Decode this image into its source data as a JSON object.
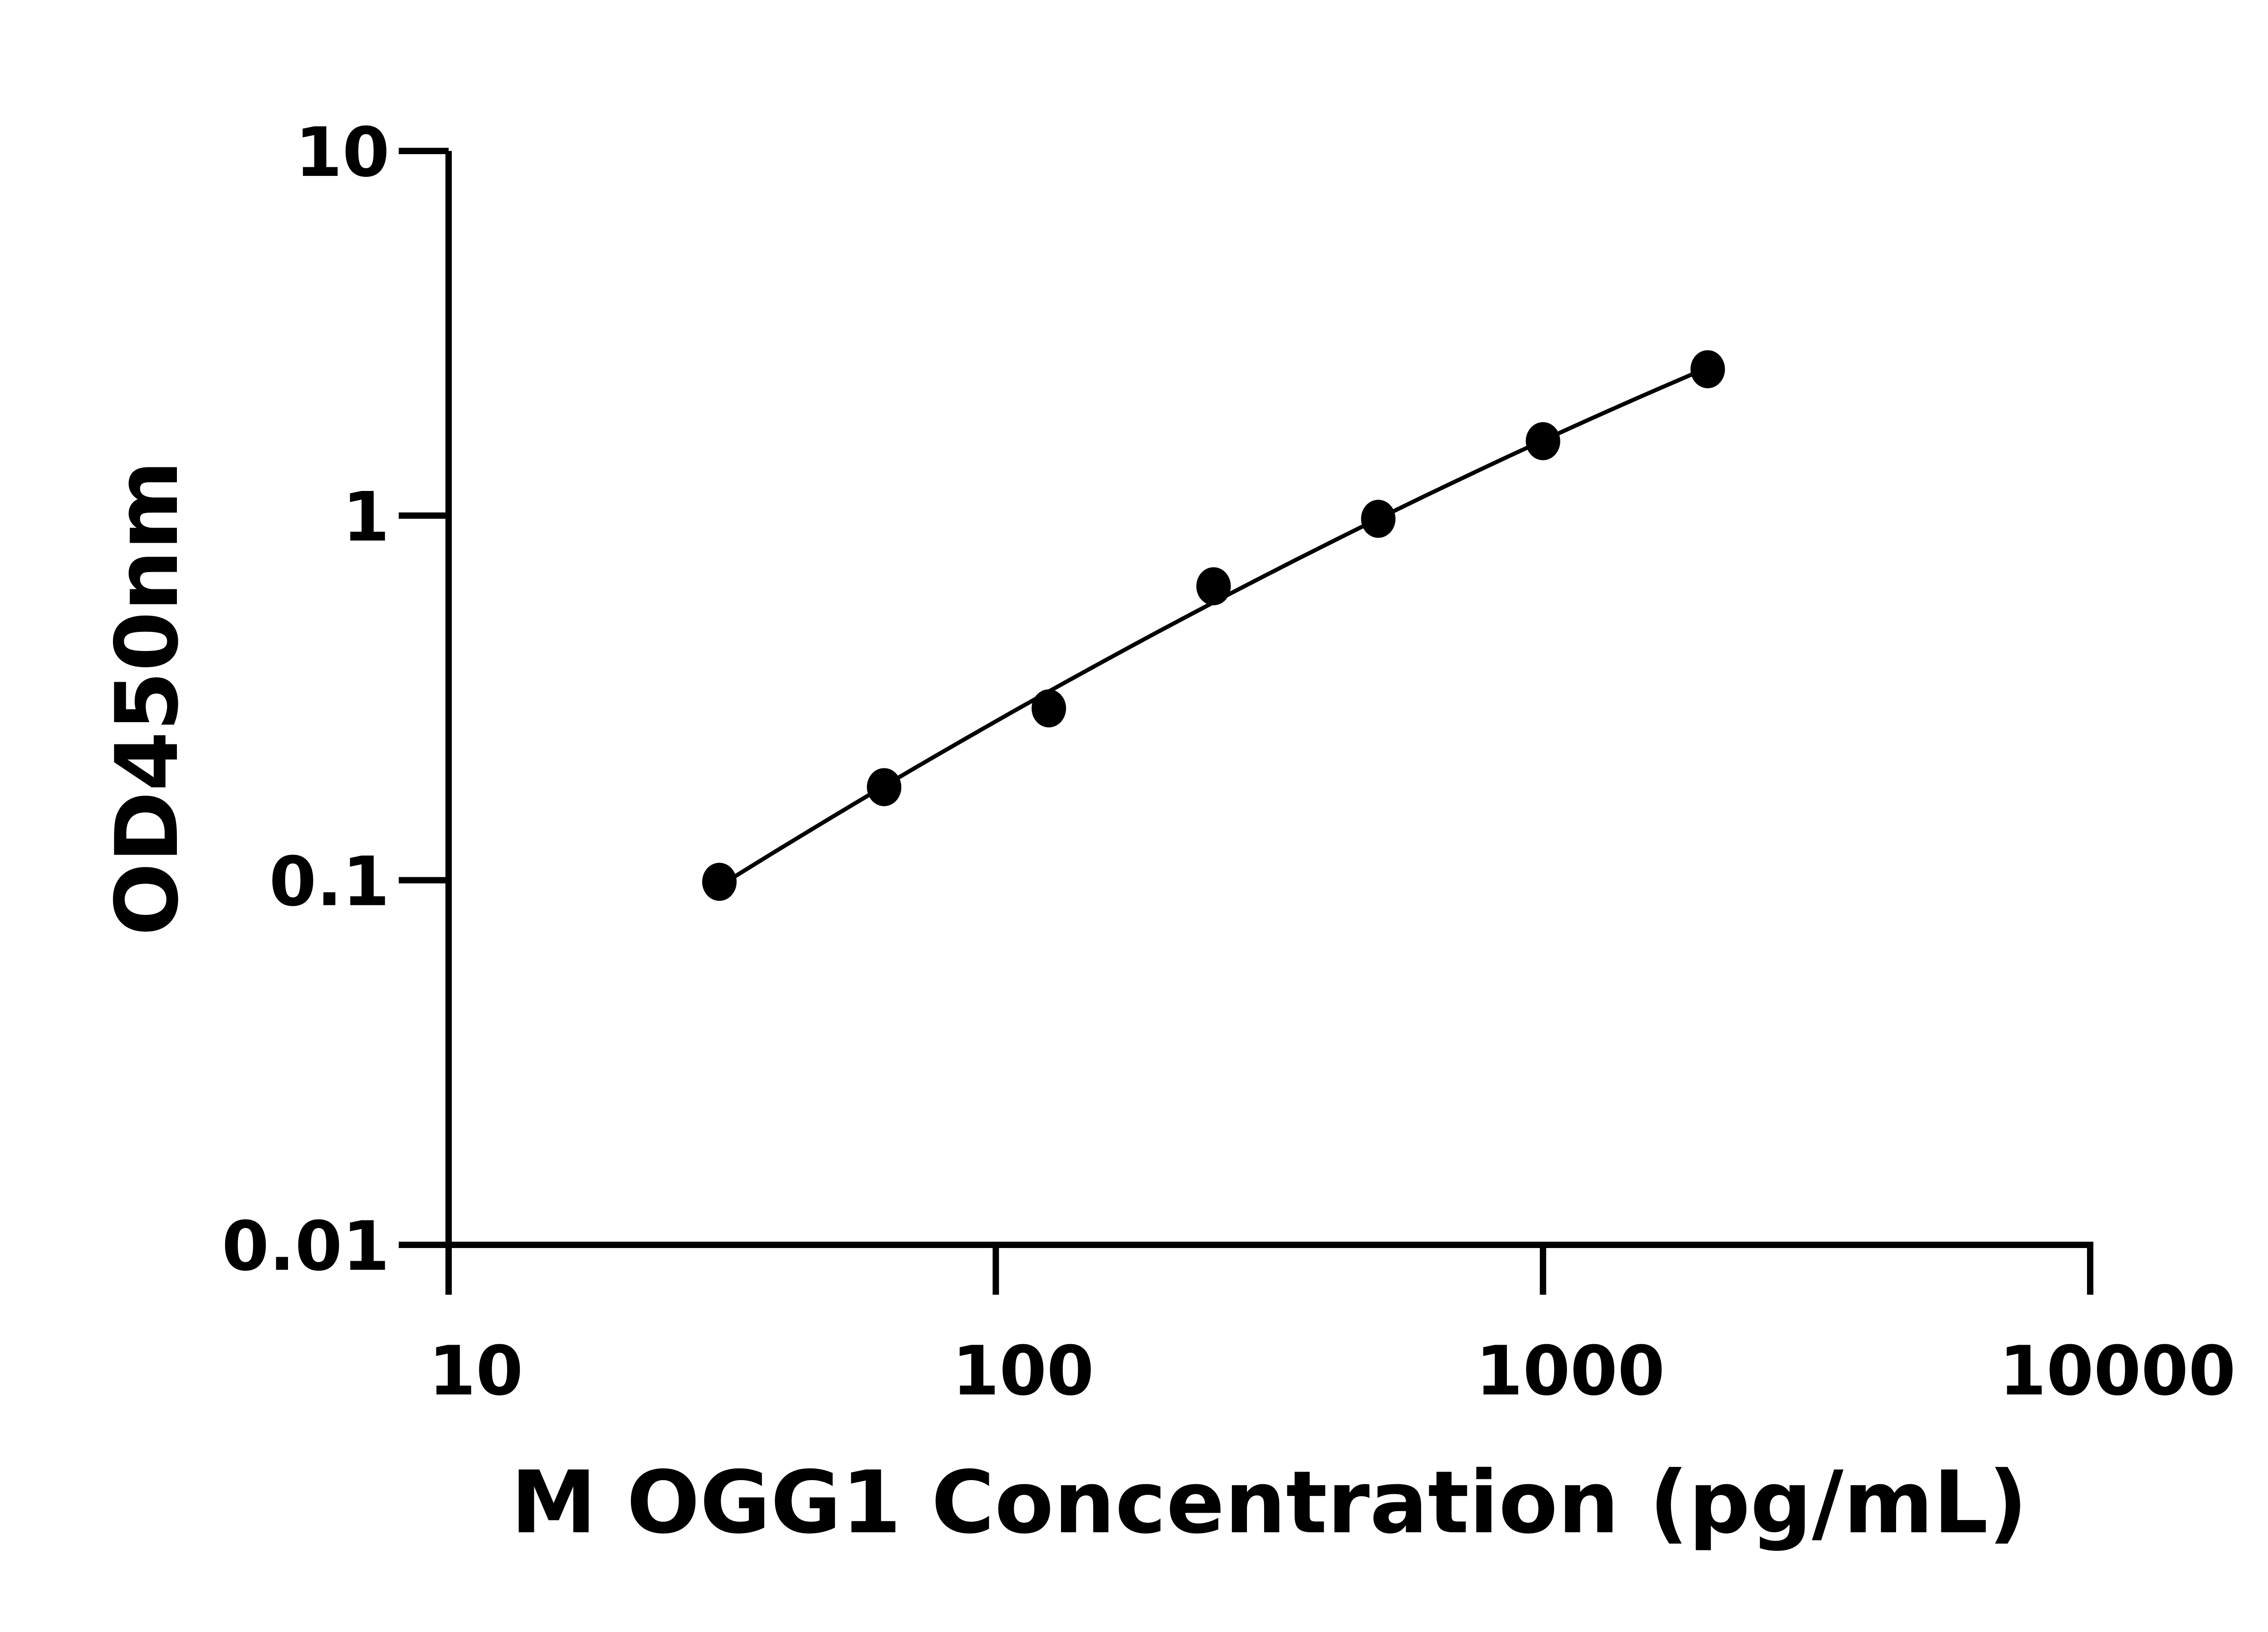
{
  "chart_data": {
    "type": "scatter",
    "title": "",
    "xlabel": "M OGG1 Concentration (pg/mL)",
    "ylabel": "OD450nm",
    "x_scale": "log",
    "y_scale": "log",
    "xlim": [
      10,
      10000
    ],
    "ylim": [
      0.01,
      10
    ],
    "x_ticks": [
      "10",
      "100",
      "1000",
      "10000"
    ],
    "y_ticks": [
      "0.01",
      "0.1",
      "1",
      "10"
    ],
    "grid": false,
    "fit_line": true,
    "points": [
      {
        "x": 31.25,
        "y": 0.099
      },
      {
        "x": 62.5,
        "y": 0.18
      },
      {
        "x": 125,
        "y": 0.296
      },
      {
        "x": 250,
        "y": 0.64
      },
      {
        "x": 500,
        "y": 0.98
      },
      {
        "x": 1000,
        "y": 1.6
      },
      {
        "x": 2000,
        "y": 2.52
      }
    ],
    "color": "#000000"
  }
}
